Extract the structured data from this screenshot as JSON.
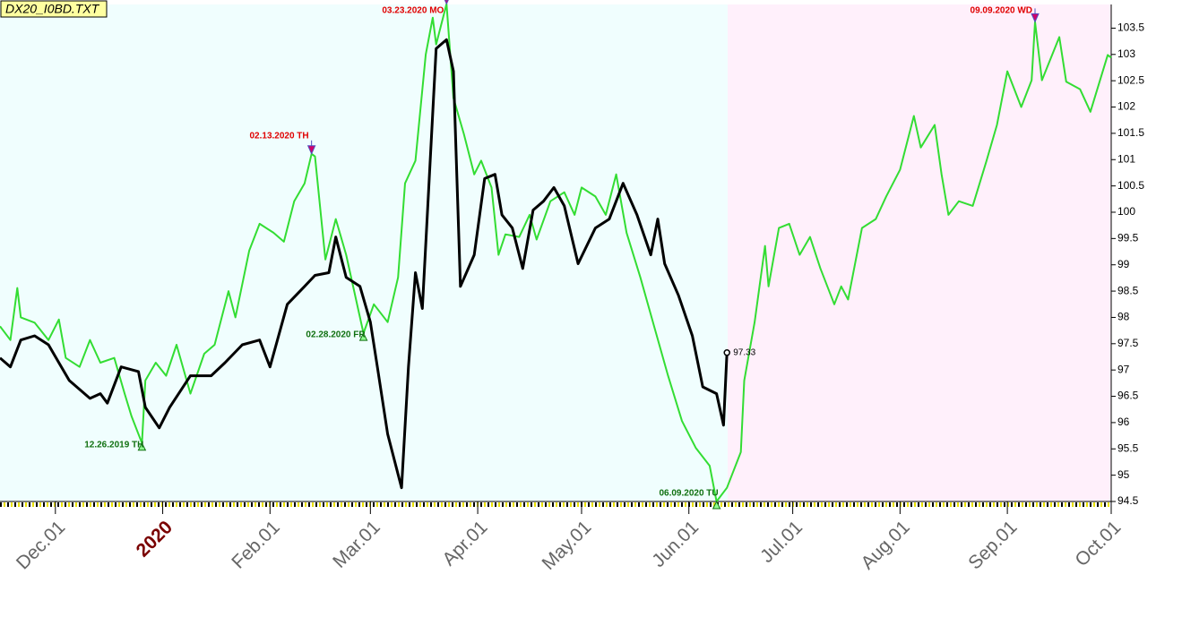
{
  "chart_data": {
    "type": "line",
    "title": "DX20_I0BD.TXT",
    "xlim": [
      "2019-11-15",
      "2020-10-01"
    ],
    "xticks": [
      {
        "value": "2019-12-01",
        "label": "Dec.01"
      },
      {
        "value": "2020-01-01",
        "label": "2020"
      },
      {
        "value": "2020-02-01",
        "label": "Feb.01"
      },
      {
        "value": "2020-03-01",
        "label": "Mar.01"
      },
      {
        "value": "2020-04-01",
        "label": "Apr.01"
      },
      {
        "value": "2020-05-01",
        "label": "May.01"
      },
      {
        "value": "2020-06-01",
        "label": "Jun.01"
      },
      {
        "value": "2020-07-01",
        "label": "Jul.01"
      },
      {
        "value": "2020-08-01",
        "label": "Aug.01"
      },
      {
        "value": "2020-09-01",
        "label": "Sep.01"
      },
      {
        "value": "2020-10-01",
        "label": "Oct.01"
      }
    ],
    "ylim": [
      94.5,
      103.95
    ],
    "yticks": [
      94.5,
      95,
      95.5,
      96,
      96.5,
      97,
      97.5,
      98,
      98.5,
      99,
      99.5,
      100,
      100.5,
      101,
      101.5,
      102,
      102.5,
      103,
      103.5
    ],
    "series": [
      {
        "color": "#33dd33",
        "x": [
          "2019-11-15",
          "2019-11-18",
          "2019-11-20",
          "2019-11-21",
          "2019-11-25",
          "2019-11-29",
          "2019-12-02",
          "2019-12-04",
          "2019-12-08",
          "2019-12-11",
          "2019-12-14",
          "2019-12-18",
          "2019-12-21",
          "2019-12-23",
          "2019-12-26",
          "2019-12-27",
          "2019-12-30",
          "2020-01-02",
          "2020-01-05",
          "2020-01-09",
          "2020-01-13",
          "2020-01-16",
          "2020-01-20",
          "2020-01-22",
          "2020-01-26",
          "2020-01-29",
          "2020-02-02",
          "2020-02-05",
          "2020-02-08",
          "2020-02-11",
          "2020-02-13",
          "2020-02-14",
          "2020-02-17",
          "2020-02-20",
          "2020-02-23",
          "2020-02-28",
          "2020-03-02",
          "2020-03-06",
          "2020-03-09",
          "2020-03-11",
          "2020-03-14",
          "2020-03-17",
          "2020-03-19",
          "2020-03-20",
          "2020-03-23",
          "2020-03-25",
          "2020-03-28",
          "2020-03-31",
          "2020-04-02",
          "2020-04-05",
          "2020-04-07",
          "2020-04-09",
          "2020-04-13",
          "2020-04-16",
          "2020-04-18",
          "2020-04-22",
          "2020-04-26",
          "2020-04-29",
          "2020-05-01",
          "2020-05-05",
          "2020-05-08",
          "2020-05-11",
          "2020-05-14",
          "2020-05-18",
          "2020-05-22",
          "2020-05-26",
          "2020-05-30",
          "2020-06-03",
          "2020-06-07",
          "2020-06-09",
          "2020-06-12",
          "2020-06-16",
          "2020-06-17",
          "2020-06-20",
          "2020-06-23",
          "2020-06-24",
          "2020-06-27",
          "2020-06-30",
          "2020-07-03",
          "2020-07-06",
          "2020-07-09",
          "2020-07-13",
          "2020-07-15",
          "2020-07-17",
          "2020-07-21",
          "2020-07-25",
          "2020-07-28",
          "2020-08-01",
          "2020-08-05",
          "2020-08-07",
          "2020-08-11",
          "2020-08-13",
          "2020-08-15",
          "2020-08-18",
          "2020-08-22",
          "2020-08-26",
          "2020-08-29",
          "2020-09-01",
          "2020-09-05",
          "2020-09-08",
          "2020-09-09",
          "2020-09-11",
          "2020-09-16",
          "2020-09-18",
          "2020-09-22",
          "2020-09-25",
          "2020-09-30",
          "2020-10-01"
        ],
        "values": [
          97.83,
          97.57,
          98.56,
          98.0,
          97.9,
          97.57,
          97.96,
          97.23,
          97.06,
          97.57,
          97.14,
          97.23,
          96.55,
          96.12,
          95.61,
          96.8,
          97.14,
          96.89,
          97.48,
          96.55,
          97.31,
          97.48,
          98.5,
          98.0,
          99.27,
          99.78,
          99.61,
          99.44,
          100.21,
          100.55,
          101.11,
          101.06,
          99.1,
          99.87,
          99.19,
          97.7,
          98.25,
          97.91,
          98.76,
          100.55,
          100.98,
          103.0,
          103.7,
          103.19,
          103.96,
          102.17,
          101.49,
          100.72,
          100.98,
          100.47,
          99.19,
          99.58,
          99.53,
          99.95,
          99.48,
          100.21,
          100.38,
          99.95,
          100.47,
          100.3,
          99.95,
          100.72,
          99.61,
          98.76,
          97.82,
          96.89,
          96.03,
          95.52,
          95.18,
          94.5,
          94.76,
          95.44,
          96.8,
          97.91,
          99.36,
          98.59,
          99.7,
          99.78,
          99.19,
          99.53,
          98.93,
          98.25,
          98.59,
          98.34,
          99.7,
          99.87,
          100.3,
          100.81,
          101.83,
          101.23,
          101.66,
          100.72,
          99.95,
          100.21,
          100.12,
          100.98,
          101.66,
          102.68,
          102.0,
          102.51,
          103.62,
          102.51,
          103.33,
          102.48,
          102.34,
          101.91,
          102.99,
          102.94
        ]
      },
      {
        "color": "#000000",
        "x": [
          "2019-11-15",
          "2019-11-18",
          "2019-11-21",
          "2019-11-25",
          "2019-11-29",
          "2019-12-02",
          "2019-12-05",
          "2019-12-11",
          "2019-12-14",
          "2019-12-16",
          "2019-12-20",
          "2019-12-25",
          "2019-12-27",
          "2019-12-31",
          "2020-01-03",
          "2020-01-09",
          "2020-01-15",
          "2020-01-19",
          "2020-01-24",
          "2020-01-29",
          "2020-02-01",
          "2020-02-06",
          "2020-02-11",
          "2020-02-14",
          "2020-02-18",
          "2020-02-20",
          "2020-02-23",
          "2020-02-27",
          "2020-03-01",
          "2020-03-03",
          "2020-03-06",
          "2020-03-10",
          "2020-03-12",
          "2020-03-14",
          "2020-03-16",
          "2020-03-18",
          "2020-03-20",
          "2020-03-23",
          "2020-03-25",
          "2020-03-27",
          "2020-03-31",
          "2020-04-03",
          "2020-04-06",
          "2020-04-08",
          "2020-04-11",
          "2020-04-14",
          "2020-04-17",
          "2020-04-20",
          "2020-04-23",
          "2020-04-26",
          "2020-04-30",
          "2020-05-05",
          "2020-05-09",
          "2020-05-13",
          "2020-05-17",
          "2020-05-21",
          "2020-05-23",
          "2020-05-25",
          "2020-05-29",
          "2020-06-02",
          "2020-06-05",
          "2020-06-09",
          "2020-06-11",
          "2020-06-12"
        ],
        "values": [
          97.23,
          97.06,
          97.57,
          97.65,
          97.48,
          97.14,
          96.8,
          96.46,
          96.55,
          96.37,
          97.06,
          96.97,
          96.29,
          95.9,
          96.29,
          96.89,
          96.89,
          97.14,
          97.48,
          97.57,
          97.06,
          98.25,
          98.59,
          98.8,
          98.85,
          99.53,
          98.76,
          98.59,
          97.91,
          97.06,
          95.78,
          94.76,
          97.06,
          98.85,
          98.17,
          100.64,
          103.11,
          103.28,
          102.68,
          98.59,
          99.19,
          100.64,
          100.72,
          99.95,
          99.7,
          98.93,
          100.04,
          100.21,
          100.47,
          100.12,
          99.02,
          99.7,
          99.87,
          100.55,
          99.95,
          99.19,
          99.87,
          99.02,
          98.42,
          97.65,
          96.68,
          96.55,
          95.95,
          97.33
        ]
      }
    ],
    "annotations": [
      {
        "x": "2019-12-26",
        "y": 95.61,
        "kind": "low",
        "label": "12.26.2019 TH"
      },
      {
        "x": "2020-02-13",
        "y": 101.11,
        "kind": "high",
        "label": "02.13.2020 TH"
      },
      {
        "x": "2020-02-28",
        "y": 97.7,
        "kind": "low",
        "label": "02.28.2020 FR"
      },
      {
        "x": "2020-03-23",
        "y": 103.96,
        "kind": "high",
        "label": "03.23.2020 MO"
      },
      {
        "x": "2020-06-09",
        "y": 94.5,
        "kind": "low",
        "label": "06.09.2020 TU"
      },
      {
        "x": "2020-09-09",
        "y": 103.62,
        "kind": "high",
        "label": "09.09.2020 WD"
      }
    ]
  }
}
